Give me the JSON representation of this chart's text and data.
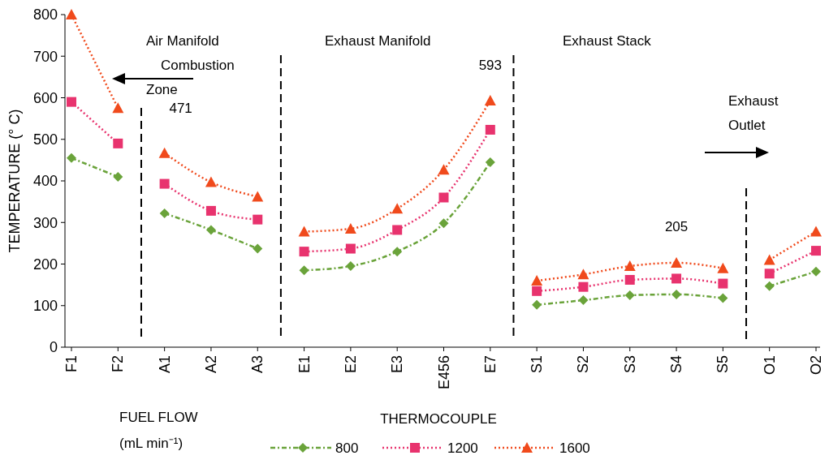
{
  "chart_data": {
    "type": "line",
    "xlabel": "THERMOCOUPLE",
    "ylabel": "TEMPERATURE (° C)",
    "legend_title": "FUEL FLOW (mL min⁻¹)",
    "legend": "bottom",
    "grid": false,
    "categories": [
      "F1",
      "F2",
      "A1",
      "A2",
      "A3",
      "E1",
      "E2",
      "E3",
      "E456",
      "E7",
      "S1",
      "S2",
      "S3",
      "S4",
      "S5",
      "O1",
      "O2"
    ],
    "ylim": [
      0,
      800
    ],
    "yticks": [
      0,
      100,
      200,
      300,
      400,
      500,
      600,
      700,
      800
    ],
    "series": [
      {
        "name": "800",
        "color": "#6aa33a",
        "marker": "diamond",
        "line_style": "dashed",
        "values": [
          455,
          410,
          322,
          282,
          237,
          185,
          195,
          230,
          298,
          445,
          102,
          113,
          125,
          127,
          118,
          147,
          182
        ]
      },
      {
        "name": "1200",
        "color": "#e8336e",
        "marker": "square",
        "line_style": "dotted",
        "values": [
          590,
          490,
          393,
          328,
          307,
          230,
          237,
          282,
          360,
          523,
          135,
          145,
          162,
          165,
          153,
          177,
          232
        ]
      },
      {
        "name": "1600",
        "color": "#f04a1c",
        "marker": "triangle",
        "line_style": "dotted",
        "values": [
          800,
          575,
          467,
          397,
          362,
          278,
          285,
          333,
          427,
          593,
          160,
          175,
          195,
          203,
          190,
          210,
          278
        ]
      }
    ],
    "annotations": [
      "Air Manifold Combustion Zone",
      "Exhaust Manifold",
      "Exhaust Stack",
      "Exhaust Outlet",
      {
        "text": "471",
        "x": "A1",
        "y": 471
      },
      {
        "text": "593",
        "x": "E7",
        "y": 593
      },
      {
        "text": "205",
        "x": "S4",
        "y": 205
      }
    ]
  }
}
